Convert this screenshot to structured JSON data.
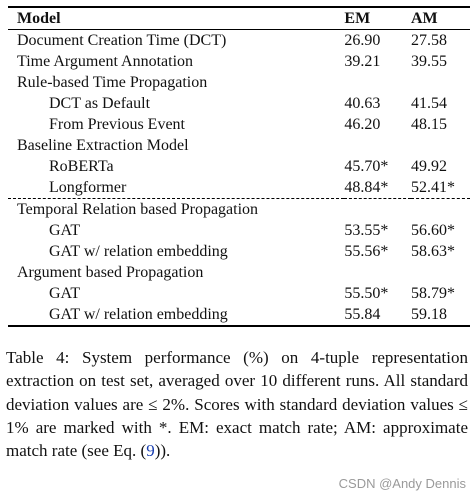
{
  "table": {
    "headers": {
      "model": "Model",
      "em": "EM",
      "am": "AM"
    },
    "rows": [
      {
        "name": "Document Creation Time (DCT)",
        "em": "26.90",
        "am": "27.58",
        "indent": false,
        "dashed": false
      },
      {
        "name": "Time Argument Annotation",
        "em": "39.21",
        "am": "39.55",
        "indent": false,
        "dashed": false
      },
      {
        "name": "Rule-based Time Propagation",
        "em": "",
        "am": "",
        "indent": false,
        "dashed": false
      },
      {
        "name": "DCT as Default",
        "em": "40.63",
        "am": "41.54",
        "indent": true,
        "dashed": false
      },
      {
        "name": "From Previous Event",
        "em": "46.20",
        "am": "48.15",
        "indent": true,
        "dashed": false
      },
      {
        "name": "Baseline Extraction Model",
        "em": "",
        "am": "",
        "indent": false,
        "dashed": false
      },
      {
        "name": "RoBERTa",
        "em": "45.70*",
        "am": "49.92",
        "indent": true,
        "dashed": false
      },
      {
        "name": "Longformer",
        "em": "48.84*",
        "am": "52.41*",
        "indent": true,
        "dashed": false
      },
      {
        "name": "Temporal Relation based Propagation",
        "em": "",
        "am": "",
        "indent": false,
        "dashed": true
      },
      {
        "name": "GAT",
        "em": "53.55*",
        "am": "56.60*",
        "indent": true,
        "dashed": false
      },
      {
        "name": "GAT w/ relation embedding",
        "em": "55.56*",
        "am": "58.63*",
        "indent": true,
        "dashed": false
      },
      {
        "name": "Argument based Propagation",
        "em": "",
        "am": "",
        "indent": false,
        "dashed": false
      },
      {
        "name": "GAT",
        "em": "55.50*",
        "am": "58.79*",
        "indent": true,
        "dashed": false
      },
      {
        "name": "GAT w/ relation embedding",
        "em": "55.84",
        "am": "59.18",
        "indent": true,
        "dashed": false
      }
    ]
  },
  "caption": {
    "text_before_ref": "Table 4: System performance (%) on 4-tuple representation extraction on test set, averaged over 10 different runs. All standard deviation values are ≤ 2%. Scores with standard deviation values ≤ 1% are marked with *. EM: exact match rate; AM: approximate match rate (see Eq. (",
    "ref": "9",
    "text_after_ref": "))."
  },
  "watermark": "CSDN @Andy Dennis"
}
